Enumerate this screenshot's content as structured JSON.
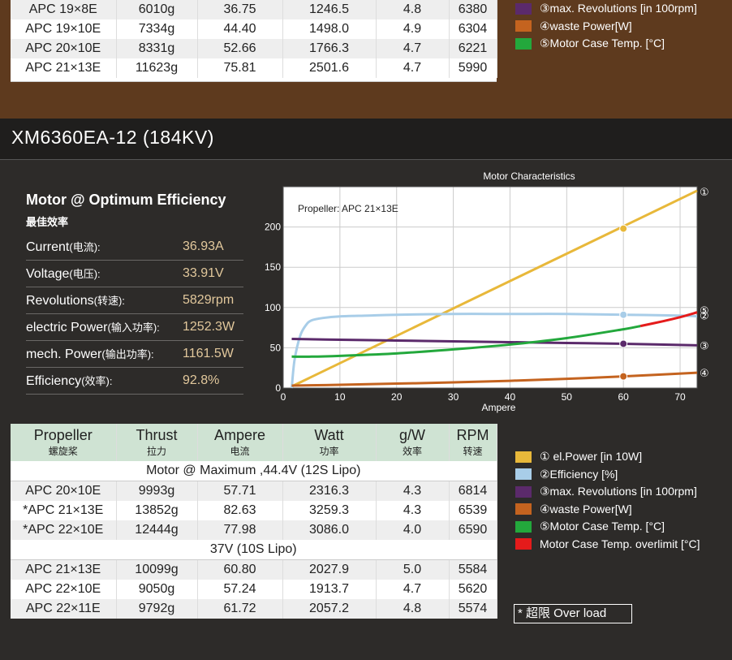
{
  "top_table": {
    "rows": [
      [
        "APC 19×8E",
        "6010g",
        "36.75",
        "1246.5",
        "4.8",
        "6380"
      ],
      [
        "APC 19×10E",
        "7334g",
        "44.40",
        "1498.0",
        "4.9",
        "6304"
      ],
      [
        "APC 20×10E",
        "8331g",
        "52.66",
        "1766.3",
        "4.7",
        "6221"
      ],
      [
        "APC 21×13E",
        "11623g",
        "75.81",
        "2501.6",
        "4.7",
        "5990"
      ]
    ]
  },
  "top_legend": [
    {
      "label": "③max. Revolutions [in 100rpm]",
      "color": "#5b2a6b"
    },
    {
      "label": "④waste Power[W]",
      "color": "#c4631f"
    },
    {
      "label": "⑤Motor Case Temp. [°C]",
      "color": "#23a83c"
    }
  ],
  "model_title": "XM6360EA-12 (184KV)",
  "efficiency": {
    "title": "Motor @ Optimum Efficiency",
    "subtitle": "最佳效率",
    "rows": [
      {
        "label": "Current",
        "cn": "(电流):",
        "value": "36.93A"
      },
      {
        "label": "Voltage",
        "cn": "(电压):",
        "value": "33.91V"
      },
      {
        "label": "Revolutions",
        "cn": "(转速):",
        "value": "5829rpm"
      },
      {
        "label": "electric Power",
        "cn": "(输入功率):",
        "value": "1252.3W"
      },
      {
        "label": "mech. Power",
        "cn": "(输出功率):",
        "value": "1161.5W"
      },
      {
        "label": "Efficiency",
        "cn": "(效率):",
        "value": "92.8%"
      }
    ]
  },
  "chart_data": {
    "type": "line",
    "title": "Motor Characteristics",
    "annotation": "Propeller:  APC 21×13E",
    "xlabel": "Ampere",
    "ylabel": "",
    "xlim": [
      0,
      73
    ],
    "ylim": [
      0,
      250
    ],
    "xticks": [
      0,
      10,
      20,
      30,
      40,
      50,
      60,
      70
    ],
    "yticks": [
      0,
      50,
      100,
      150,
      200
    ],
    "grid": true,
    "series": [
      {
        "name": "①",
        "color": "#e8b83a",
        "x": [
          1.5,
          73
        ],
        "y": [
          2,
          245
        ],
        "marker": {
          "x": 60,
          "y": 198
        }
      },
      {
        "name": "②",
        "color": "#a8cde8",
        "x": [
          1.5,
          2,
          3,
          4,
          5,
          7,
          10,
          15,
          20,
          30,
          40,
          50,
          60,
          70,
          73
        ],
        "y": [
          0,
          35,
          65,
          78,
          84,
          87,
          89,
          90,
          91,
          92,
          92,
          92,
          91,
          90,
          89
        ],
        "marker": {
          "x": 60,
          "y": 91
        }
      },
      {
        "name": "③",
        "color": "#5b2a6b",
        "x": [
          1.5,
          10,
          20,
          30,
          40,
          50,
          60,
          73
        ],
        "y": [
          61,
          60,
          59,
          58,
          57,
          56,
          55,
          53
        ],
        "marker": {
          "x": 60,
          "y": 55
        }
      },
      {
        "name": "④",
        "color": "#c4631f",
        "x": [
          1.5,
          10,
          20,
          30,
          40,
          50,
          60,
          73
        ],
        "y": [
          3,
          4,
          5.5,
          7,
          9,
          11.5,
          14.5,
          19
        ],
        "marker": {
          "x": 60,
          "y": 14.5
        }
      },
      {
        "name": "⑤",
        "color": "#23a83c",
        "x": [
          1.5,
          5,
          10,
          20,
          30,
          40,
          50,
          60,
          63
        ],
        "y": [
          39,
          39,
          40,
          43,
          48,
          54,
          62,
          73,
          77
        ]
      },
      {
        "name": "⑤ overlimit",
        "color": "#e51b1b",
        "x": [
          63,
          67,
          70,
          73
        ],
        "y": [
          77,
          83,
          88,
          94
        ]
      }
    ]
  },
  "bottom_table": {
    "headers": [
      {
        "en": "Propeller",
        "cn": "螺旋桨"
      },
      {
        "en": "Thrust",
        "cn": "拉力"
      },
      {
        "en": "Ampere",
        "cn": "电流"
      },
      {
        "en": "Watt",
        "cn": "功率"
      },
      {
        "en": "g/W",
        "cn": "效率"
      },
      {
        "en": "RPM",
        "cn": "转速"
      }
    ],
    "section1": "Motor @ Maximum ,44.4V (12S Lipo)",
    "rows1": [
      [
        "APC 20×10E",
        "9993g",
        "57.71",
        "2316.3",
        "4.3",
        "6814"
      ],
      [
        "*APC 21×13E",
        "13852g",
        "82.63",
        "3259.3",
        "4.3",
        "6539"
      ],
      [
        "*APC 22×10E",
        "12444g",
        "77.98",
        "3086.0",
        "4.0",
        "6590"
      ]
    ],
    "section2": "37V (10S Lipo)",
    "rows2": [
      [
        "APC 21×13E",
        "10099g",
        "60.80",
        "2027.9",
        "5.0",
        "5584"
      ],
      [
        "APC 22×10E",
        "9050g",
        "57.24",
        "1913.7",
        "4.7",
        "5620"
      ],
      [
        "APC 22×11E",
        "9792g",
        "61.72",
        "2057.2",
        "4.8",
        "5574"
      ]
    ]
  },
  "bottom_legend": [
    {
      "label": "① el.Power [in 10W]",
      "color": "#e8b83a"
    },
    {
      "label": "②Efficiency [%]",
      "color": "#a8cde8"
    },
    {
      "label": "③max. Revolutions [in 100rpm]",
      "color": "#5b2a6b"
    },
    {
      "label": "④waste Power[W]",
      "color": "#c4631f"
    },
    {
      "label": "⑤Motor Case Temp. [°C]",
      "color": "#23a83c"
    },
    {
      "label": "Motor Case Temp. overlimit [°C]",
      "color": "#e51b1b"
    }
  ],
  "overload_note": "* 超限 Over load"
}
